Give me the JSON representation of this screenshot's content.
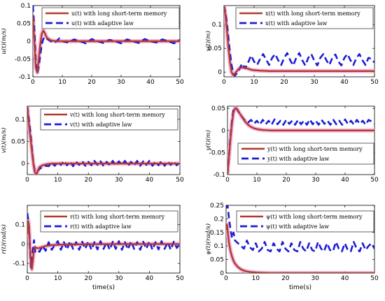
{
  "colors": {
    "lstm": "#b03a2e",
    "lstm_glow": "#f2a7d6",
    "adaptive": "#1c1cd6"
  },
  "chart_data": [
    {
      "type": "line",
      "id": "u",
      "ylabel": "u(t)(m/s)",
      "xlabel": "",
      "xlim": [
        0,
        50
      ],
      "ylim": [
        -0.1,
        0.1
      ],
      "xticks": [
        "0",
        "10",
        "20",
        "30",
        "40",
        "50"
      ],
      "yticks": [
        "-0.1",
        "-0.05",
        "0",
        "0.05",
        "0.1"
      ],
      "legend_placement": "top-left",
      "series": [
        {
          "name": "u(t) with long short-term memory",
          "x": [
            0,
            0.5,
            1,
            1.5,
            2,
            2.5,
            3,
            3.5,
            4,
            4.5,
            5,
            6,
            7,
            8,
            10,
            15,
            20,
            30,
            40,
            50
          ],
          "y": [
            0.07,
            0.0,
            -0.075,
            -0.088,
            -0.05,
            -0.01,
            0.02,
            0.03,
            0.024,
            0.014,
            0.008,
            0.003,
            0.001,
            0.0,
            0.0,
            0.0,
            0.0,
            0.0,
            0.0,
            0.0
          ]
        },
        {
          "name": "u(t) with adaptive law",
          "x": [
            0,
            0.5,
            1,
            1.5,
            2,
            2.5,
            3,
            3.5,
            4,
            5,
            6,
            7,
            8,
            9,
            10,
            12,
            14,
            16,
            18,
            20,
            22,
            24,
            26,
            28,
            30,
            32,
            34,
            36,
            38,
            40,
            42,
            44,
            46,
            48,
            50
          ],
          "y": [
            0.1,
            0.03,
            -0.06,
            -0.09,
            -0.07,
            -0.04,
            -0.01,
            0.005,
            0.012,
            0.006,
            0.0,
            -0.005,
            0.0,
            0.008,
            0.0,
            -0.004,
            0.005,
            0.0,
            -0.006,
            0.006,
            0.0,
            -0.005,
            0.004,
            0.0,
            -0.006,
            0.005,
            0.0,
            -0.005,
            0.006,
            0.0,
            -0.004,
            0.005,
            0.0,
            -0.006,
            0.004
          ]
        }
      ]
    },
    {
      "type": "line",
      "id": "x",
      "ylabel": "x(t)(m)",
      "xlabel": "",
      "xlim": [
        0,
        50
      ],
      "ylim": [
        -0.01,
        0.14
      ],
      "xticks": [
        "0",
        "10",
        "20",
        "30",
        "40",
        "50"
      ],
      "yticks": [
        "0",
        "0.05",
        "0.1"
      ],
      "legend_placement": "top-right",
      "series": [
        {
          "name": "x(t) with long short-term memory",
          "x": [
            0,
            0.5,
            1,
            1.5,
            2,
            2.5,
            3,
            3.5,
            4,
            5,
            6,
            7,
            8,
            9,
            10,
            12,
            15,
            20,
            30,
            40,
            50
          ],
          "y": [
            0.14,
            0.12,
            0.085,
            0.05,
            0.02,
            0.0,
            -0.006,
            -0.005,
            0.0,
            0.007,
            0.01,
            0.009,
            0.007,
            0.005,
            0.004,
            0.003,
            0.002,
            0.002,
            0.002,
            0.002,
            0.002
          ]
        },
        {
          "name": "x(t) with adaptive law",
          "x": [
            0,
            0.5,
            1,
            1.5,
            2,
            2.5,
            3,
            3.5,
            4,
            5,
            6,
            7,
            8,
            9,
            10,
            11,
            12,
            13,
            14,
            15,
            16,
            17,
            18,
            19,
            20,
            21,
            22,
            23,
            24,
            25,
            26,
            27,
            28,
            29,
            30,
            31,
            32,
            33,
            34,
            35,
            36,
            37,
            38,
            39,
            40,
            41,
            42,
            43,
            44,
            45,
            46,
            47,
            48,
            49,
            50
          ],
          "y": [
            0.14,
            0.125,
            0.1,
            0.07,
            0.04,
            0.015,
            0.0,
            -0.008,
            -0.005,
            0.005,
            0.018,
            0.008,
            0.02,
            0.035,
            0.022,
            0.015,
            0.028,
            0.038,
            0.026,
            0.015,
            0.03,
            0.038,
            0.025,
            0.015,
            0.03,
            0.04,
            0.025,
            0.014,
            0.03,
            0.04,
            0.025,
            0.014,
            0.03,
            0.038,
            0.024,
            0.014,
            0.03,
            0.038,
            0.025,
            0.015,
            0.03,
            0.037,
            0.022,
            0.014,
            0.03,
            0.038,
            0.025,
            0.015,
            0.03,
            0.038,
            0.025,
            0.015,
            0.03,
            0.028,
            0.02
          ]
        }
      ]
    },
    {
      "type": "line",
      "id": "v",
      "ylabel": "v(t)(m/s)",
      "xlabel": "",
      "xlim": [
        0,
        50
      ],
      "ylim": [
        -0.025,
        0.13
      ],
      "xticks": [
        "0",
        "10",
        "20",
        "30",
        "40",
        "50"
      ],
      "yticks": [
        "0",
        "0.05",
        "0.1"
      ],
      "legend_placement": "top-right",
      "series": [
        {
          "name": "v(t) with long short-term memory",
          "x": [
            0,
            0.5,
            1,
            1.5,
            2,
            2.5,
            3,
            3.5,
            4,
            5,
            6,
            7,
            8,
            10,
            15,
            20,
            30,
            40,
            50
          ],
          "y": [
            0.13,
            0.09,
            0.06,
            0.03,
            0.0,
            -0.02,
            -0.025,
            -0.015,
            -0.008,
            -0.004,
            -0.002,
            -0.001,
            0.0,
            0.0,
            0.0,
            0.0,
            0.0,
            0.0,
            0.0
          ]
        },
        {
          "name": "v(t) with adaptive law",
          "x": [
            0,
            0.5,
            1,
            1.5,
            2,
            2.5,
            3,
            4,
            5,
            6,
            7,
            8,
            9,
            10,
            11,
            12,
            13,
            14,
            15,
            16,
            17,
            18,
            19,
            20,
            21,
            22,
            23,
            24,
            25,
            26,
            27,
            28,
            29,
            30,
            31,
            32,
            33,
            34,
            35,
            36,
            37,
            38,
            39,
            40,
            41,
            42,
            43,
            44,
            45,
            46,
            47,
            48,
            49,
            50
          ],
          "y": [
            0.13,
            0.1,
            0.07,
            0.035,
            0.0,
            -0.018,
            -0.02,
            -0.012,
            -0.008,
            -0.005,
            -0.006,
            0.002,
            -0.005,
            0.004,
            -0.003,
            0.006,
            -0.004,
            0.005,
            -0.006,
            0.004,
            -0.003,
            0.006,
            -0.005,
            0.004,
            -0.004,
            0.006,
            -0.003,
            0.005,
            -0.006,
            0.004,
            -0.004,
            0.006,
            -0.005,
            0.005,
            -0.003,
            0.006,
            -0.005,
            0.004,
            -0.004,
            0.006,
            -0.005,
            0.005,
            -0.003,
            0.006,
            -0.005,
            0.004,
            -0.004,
            0.006,
            -0.005,
            0.005,
            -0.003,
            0.005,
            -0.004,
            0.004
          ]
        }
      ]
    },
    {
      "type": "line",
      "id": "y",
      "ylabel": "y(t)(m)",
      "xlabel": "",
      "xlim": [
        0,
        50
      ],
      "ylim": [
        -0.1,
        0.055
      ],
      "xticks": [
        "0",
        "10",
        "20",
        "30",
        "40",
        "50"
      ],
      "yticks": [
        "-0.1",
        "-0.05",
        "0",
        "0.05"
      ],
      "legend_placement": "bottom-right",
      "series": [
        {
          "name": "y(t) with long short-term memory",
          "x": [
            0,
            0.5,
            1,
            1.5,
            2,
            2.5,
            3,
            3.5,
            4,
            5,
            6,
            7,
            8,
            9,
            10,
            12,
            15,
            20,
            30,
            40,
            50
          ],
          "y": [
            -0.1,
            -0.06,
            -0.02,
            0.015,
            0.04,
            0.05,
            0.05,
            0.046,
            0.04,
            0.03,
            0.02,
            0.013,
            0.008,
            0.005,
            0.003,
            0.001,
            0.0,
            0.0,
            0.0,
            0.0,
            0.0
          ]
        },
        {
          "name": "y(t) with adaptive law",
          "x": [
            0,
            0.5,
            1,
            1.5,
            2,
            2.5,
            3,
            4,
            5,
            6,
            7,
            8,
            9,
            10,
            11,
            12,
            13,
            14,
            15,
            16,
            17,
            18,
            19,
            20,
            21,
            22,
            23,
            24,
            25,
            26,
            27,
            28,
            29,
            30,
            31,
            32,
            33,
            34,
            35,
            36,
            37,
            38,
            39,
            40,
            41,
            42,
            43,
            44,
            45,
            46,
            47,
            48,
            49,
            50
          ],
          "y": [
            -0.1,
            -0.06,
            -0.015,
            0.02,
            0.045,
            0.052,
            0.05,
            0.04,
            0.03,
            0.022,
            0.018,
            0.024,
            0.015,
            0.022,
            0.013,
            0.024,
            0.014,
            0.022,
            0.013,
            0.025,
            0.014,
            0.022,
            0.013,
            0.024,
            0.015,
            0.022,
            0.013,
            0.024,
            0.014,
            0.022,
            0.013,
            0.025,
            0.014,
            0.022,
            0.013,
            0.024,
            0.015,
            0.022,
            0.013,
            0.024,
            0.014,
            0.022,
            0.013,
            0.025,
            0.014,
            0.022,
            0.013,
            0.024,
            0.015,
            0.022,
            0.013,
            0.024,
            0.02,
            0.015
          ]
        }
      ]
    },
    {
      "type": "line",
      "id": "r",
      "ylabel": "r(t)(rad/s)",
      "xlabel": "time(s)",
      "xlim": [
        0,
        50
      ],
      "ylim": [
        -0.15,
        0.2
      ],
      "xticks": [
        "0",
        "10",
        "20",
        "30",
        "40",
        "50"
      ],
      "yticks": [
        "-0.1",
        "0",
        "0.1"
      ],
      "legend_placement": "top-right",
      "series": [
        {
          "name": "r(t) with long short-term memory",
          "x": [
            0,
            0.3,
            0.6,
            0.9,
            1.2,
            1.5,
            1.8,
            2.1,
            2.5,
            3,
            3.5,
            4,
            5,
            6,
            8,
            10,
            15,
            20,
            30,
            40,
            50
          ],
          "y": [
            0.05,
            0.12,
            0.08,
            -0.02,
            -0.1,
            -0.13,
            -0.09,
            -0.04,
            -0.015,
            -0.02,
            -0.022,
            -0.02,
            -0.015,
            -0.01,
            -0.006,
            -0.004,
            -0.002,
            -0.001,
            0.0,
            0.0,
            0.0
          ]
        },
        {
          "name": "r(t) with adaptive law",
          "x": [
            0,
            0.3,
            0.6,
            0.9,
            1.2,
            1.5,
            1.8,
            2.2,
            2.6,
            3,
            4,
            5,
            6,
            7,
            8,
            9,
            10,
            11,
            12,
            13,
            14,
            15,
            16,
            17,
            18,
            19,
            20,
            21,
            22,
            23,
            24,
            25,
            26,
            27,
            28,
            29,
            30,
            31,
            32,
            33,
            34,
            35,
            36,
            37,
            38,
            39,
            40,
            41,
            42,
            43,
            44,
            45,
            46,
            47,
            48,
            49,
            50
          ],
          "y": [
            0.16,
            0.13,
            0.08,
            -0.03,
            -0.12,
            -0.09,
            -0.03,
            0.02,
            -0.04,
            -0.03,
            -0.04,
            -0.01,
            -0.035,
            0.01,
            -0.03,
            -0.005,
            0.015,
            -0.03,
            0.01,
            -0.028,
            0.015,
            -0.025,
            0.01,
            -0.03,
            0.012,
            -0.025,
            0.015,
            -0.03,
            0.01,
            -0.028,
            0.015,
            -0.025,
            0.01,
            -0.03,
            0.012,
            -0.025,
            0.015,
            -0.03,
            0.01,
            -0.028,
            0.015,
            -0.025,
            0.01,
            -0.03,
            0.012,
            -0.025,
            0.015,
            -0.03,
            0.01,
            -0.028,
            0.015,
            -0.025,
            0.01,
            -0.03,
            0.012,
            -0.02,
            0.0
          ]
        }
      ]
    },
    {
      "type": "line",
      "id": "psi",
      "ylabel": "ψ(t)(rad/s)",
      "xlabel": "time(s)",
      "xlim": [
        0,
        50
      ],
      "ylim": [
        0,
        0.25
      ],
      "xticks": [
        "0",
        "10",
        "20",
        "30",
        "40",
        "50"
      ],
      "yticks": [
        "0",
        "0.05",
        "0.1",
        "0.15",
        "0.2",
        "0.25"
      ],
      "legend_placement": "top-right",
      "series": [
        {
          "name": "ψ(t) with long short-term memory",
          "x": [
            0,
            0.3,
            0.6,
            1,
            1.5,
            2,
            2.5,
            3,
            4,
            5,
            6,
            7,
            8,
            10,
            12,
            15,
            20,
            30,
            40,
            50
          ],
          "y": [
            0.16,
            0.18,
            0.15,
            0.11,
            0.08,
            0.06,
            0.045,
            0.035,
            0.022,
            0.014,
            0.009,
            0.006,
            0.004,
            0.002,
            0.001,
            0.0,
            0.0,
            0.0,
            0.0,
            0.0
          ]
        },
        {
          "name": "ψ(t) with adaptive law",
          "x": [
            0,
            0.5,
            1,
            1.5,
            2,
            2.5,
            3,
            4,
            5,
            6,
            7,
            8,
            9,
            10,
            11,
            12,
            13,
            14,
            15,
            16,
            17,
            18,
            19,
            20,
            21,
            22,
            23,
            24,
            25,
            26,
            27,
            28,
            29,
            30,
            31,
            32,
            33,
            34,
            35,
            36,
            37,
            38,
            39,
            40,
            41,
            42,
            43,
            44,
            45,
            46,
            47,
            48,
            49,
            50
          ],
          "y": [
            0.24,
            0.25,
            0.2,
            0.16,
            0.13,
            0.15,
            0.12,
            0.11,
            0.1,
            0.09,
            0.12,
            0.095,
            0.085,
            0.11,
            0.08,
            0.09,
            0.115,
            0.085,
            0.08,
            0.11,
            0.09,
            0.08,
            0.115,
            0.09,
            0.08,
            0.11,
            0.085,
            0.08,
            0.115,
            0.09,
            0.08,
            0.11,
            0.085,
            0.08,
            0.115,
            0.09,
            0.08,
            0.11,
            0.085,
            0.08,
            0.115,
            0.09,
            0.08,
            0.11,
            0.085,
            0.08,
            0.115,
            0.09,
            0.08,
            0.11,
            0.085,
            0.1,
            0.11,
            0.09
          ]
        }
      ]
    }
  ]
}
